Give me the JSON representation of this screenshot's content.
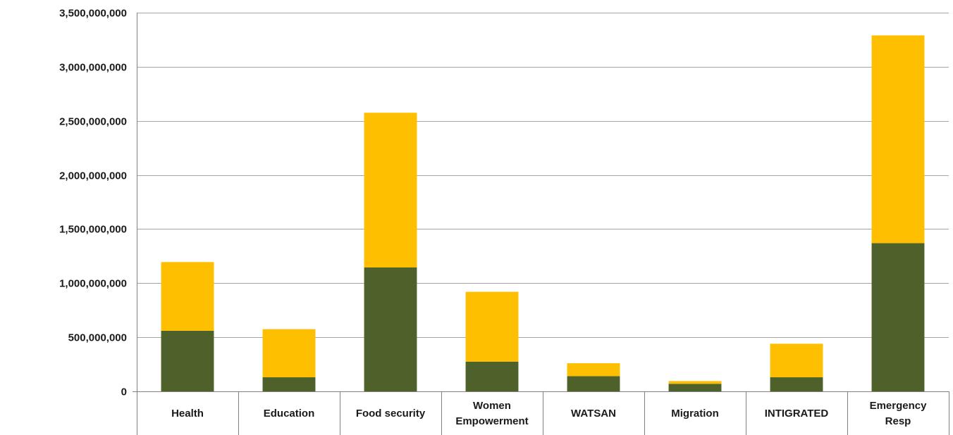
{
  "chart_data": {
    "type": "bar",
    "stacked": true,
    "title": "",
    "xlabel": "",
    "ylabel": "",
    "ylim": [
      0,
      3500000000
    ],
    "yticks": [
      0,
      500000000,
      1000000000,
      1500000000,
      2000000000,
      2500000000,
      3000000000,
      3500000000
    ],
    "ytick_labels": [
      "0",
      "500,000,000",
      "1,000,000,000",
      "1,500,000,000",
      "2,000,000,000",
      "2,500,000,000",
      "3,000,000,000",
      "3,500,000,000"
    ],
    "categories": [
      "Health",
      "Education",
      "Food security",
      "Women Empowerment",
      "WATSAN",
      "Migration",
      "INTIGRATED",
      "Emergency Resp"
    ],
    "category_lines": [
      [
        "Health"
      ],
      [
        "Education"
      ],
      [
        "Food security"
      ],
      [
        "Women",
        "Empowerment"
      ],
      [
        "WATSAN"
      ],
      [
        "Migration"
      ],
      [
        "INTIGRATED"
      ],
      [
        "Emergency",
        "Resp"
      ]
    ],
    "series": [
      {
        "color": "#4f612a",
        "values": [
          560000000,
          130000000,
          1145000000,
          275000000,
          140000000,
          70000000,
          130000000,
          1370000000
        ]
      },
      {
        "color": "#fdbf00",
        "values": [
          635000000,
          445000000,
          1430000000,
          645000000,
          120000000,
          25000000,
          310000000,
          1920000000
        ]
      }
    ],
    "grid": true,
    "gridline_color": "#a6a6a6",
    "legend": "none"
  }
}
